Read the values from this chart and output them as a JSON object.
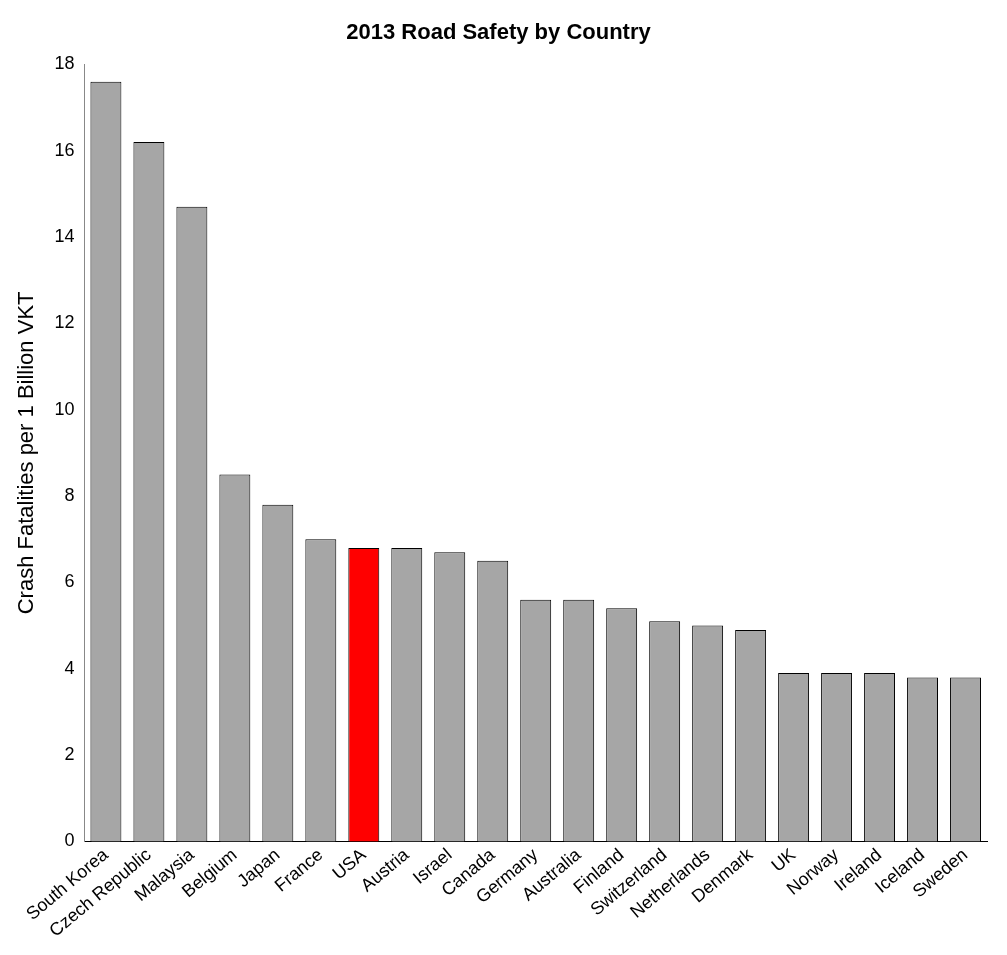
{
  "chart_data": {
    "type": "bar",
    "title": "2013 Road Safety by Country",
    "ylabel": "Crash Fatalities per 1 Billion VKT",
    "categories": [
      "South Korea",
      "Czech Republic",
      "Malaysia",
      "Belgium",
      "Japan",
      "France",
      "USA",
      "Austria",
      "Israel",
      "Canada",
      "Germany",
      "Australia",
      "Finland",
      "Switzerland",
      "Netherlands",
      "Denmark",
      "UK",
      "Norway",
      "Ireland",
      "Iceland",
      "Sweden"
    ],
    "values": [
      17.6,
      16.2,
      14.7,
      8.5,
      7.8,
      7.0,
      6.8,
      6.8,
      6.7,
      6.5,
      5.6,
      5.6,
      5.4,
      5.1,
      5.0,
      4.9,
      3.9,
      3.9,
      3.9,
      3.8,
      3.8
    ],
    "colors": [
      "#a6a6a6",
      "#a6a6a6",
      "#a6a6a6",
      "#a6a6a6",
      "#a6a6a6",
      "#a6a6a6",
      "#ff0000",
      "#a6a6a6",
      "#a6a6a6",
      "#a6a6a6",
      "#a6a6a6",
      "#a6a6a6",
      "#a6a6a6",
      "#a6a6a6",
      "#a6a6a6",
      "#a6a6a6",
      "#a6a6a6",
      "#a6a6a6",
      "#a6a6a6",
      "#a6a6a6",
      "#a6a6a6"
    ],
    "ylim": [
      0,
      18
    ],
    "yticks": [
      0,
      2,
      4,
      6,
      8,
      10,
      12,
      14,
      16,
      18
    ],
    "grid": false,
    "legend": false
  }
}
